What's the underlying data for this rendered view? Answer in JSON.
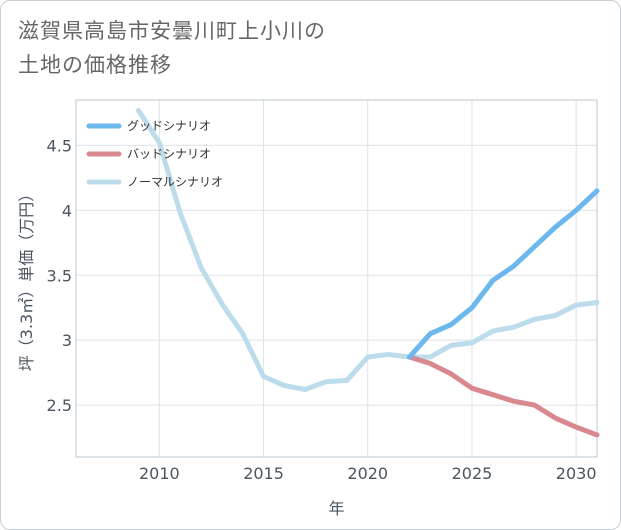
{
  "title": {
    "line1": "滋賀県高島市安曇川町上小川の",
    "line2": "土地の価格推移"
  },
  "chart_data": {
    "type": "line",
    "xlabel": "年",
    "ylabel": "坪（3.3㎡）単価（万円）",
    "xlim": [
      2006,
      2031
    ],
    "ylim": [
      2.1,
      4.85
    ],
    "x_ticks": [
      2010,
      2015,
      2020,
      2025,
      2030
    ],
    "y_ticks": [
      2.5,
      3,
      3.5,
      4,
      4.5
    ],
    "y_tick_labels": [
      "2.5",
      "3",
      "3.5",
      "4",
      "4.5"
    ],
    "grid": true,
    "legend_position": "top-left",
    "series": [
      {
        "name": "グッドシナリオ",
        "color": "#6cb8ec",
        "x": [
          2022,
          2023,
          2024,
          2025,
          2026,
          2027,
          2028,
          2029,
          2030,
          2031
        ],
        "y": [
          2.87,
          3.05,
          3.12,
          3.25,
          3.46,
          3.57,
          3.72,
          3.87,
          4.0,
          4.15
        ]
      },
      {
        "name": "バッドシナリオ",
        "color": "#d98890",
        "x": [
          2022,
          2023,
          2024,
          2025,
          2026,
          2027,
          2028,
          2029,
          2030,
          2031
        ],
        "y": [
          2.87,
          2.82,
          2.74,
          2.63,
          2.58,
          2.53,
          2.5,
          2.4,
          2.33,
          2.27
        ]
      },
      {
        "name": "ノーマルシナリオ",
        "color": "#bcdcec",
        "x": [
          2009,
          2010,
          2011,
          2012,
          2013,
          2014,
          2015,
          2016,
          2017,
          2018,
          2019,
          2020,
          2021,
          2022,
          2023,
          2024,
          2025,
          2026,
          2027,
          2028,
          2029,
          2030,
          2031
        ],
        "y": [
          4.77,
          4.52,
          3.98,
          3.56,
          3.28,
          3.05,
          2.72,
          2.65,
          2.62,
          2.68,
          2.69,
          2.87,
          2.89,
          2.87,
          2.87,
          2.96,
          2.98,
          3.07,
          3.1,
          3.16,
          3.19,
          3.27,
          3.29
        ]
      }
    ]
  }
}
